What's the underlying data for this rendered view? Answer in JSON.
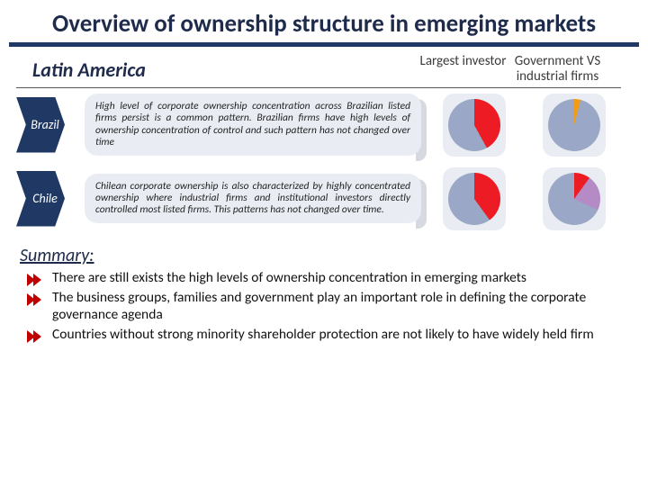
{
  "title": "Overview of ownership structure in emerging markets",
  "region": "Latin America",
  "columns": {
    "c1": "Largest investor",
    "c2": "Government VS industrial firms"
  },
  "countries": [
    {
      "name": "Brazil",
      "desc": "High level of corporate ownership concentration across Brazilian listed firms persist is a common pattern. Brazilian firms have high levels of ownership concentration of control and such pattern has not changed over time",
      "pie1": {
        "slices": [
          {
            "color": "#ed1c24",
            "pct": 42
          },
          {
            "color": "#9aa7c7",
            "pct": 58
          }
        ]
      },
      "pie2": {
        "slices": [
          {
            "color": "#f39c12",
            "pct": 4
          },
          {
            "color": "#9aa7c7",
            "pct": 96
          }
        ]
      }
    },
    {
      "name": "Chile",
      "desc": "Chilean corporate ownership is also characterized by highly concentrated ownership where industrial firms and institutional investors directly controlled most listed firms. This patterns has not changed over time.",
      "pie1": {
        "slices": [
          {
            "color": "#ed1c24",
            "pct": 40
          },
          {
            "color": "#9aa7c7",
            "pct": 60
          }
        ]
      },
      "pie2": {
        "slices": [
          {
            "color": "#ed1c24",
            "pct": 10
          },
          {
            "color": "#b48bc4",
            "pct": 22
          },
          {
            "color": "#9aa7c7",
            "pct": 68
          }
        ]
      }
    }
  ],
  "summary_label": "Summary:",
  "summary": [
    "There  are still exists the high levels of ownership concentration in emerging markets",
    "The business groups, families and government play an important role in defining the corporate governance agenda",
    "Countries without strong minority shareholder protection are not likely to have widely held firm"
  ],
  "style": {
    "title_color": "#1f2b4a",
    "bar_color": "#1f3864",
    "card_bg": "#e9edf3",
    "bullet_color": "#c00000"
  }
}
